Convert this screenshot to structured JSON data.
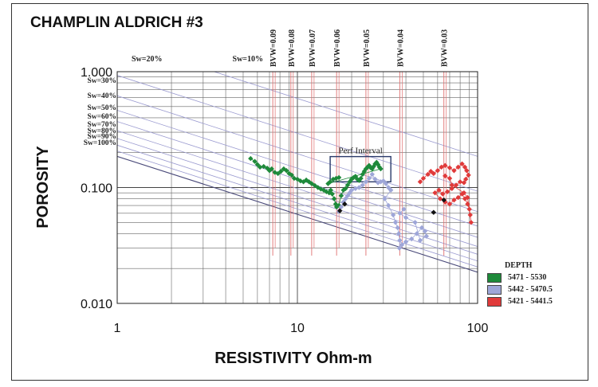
{
  "title": "CHAMPLIN ALDRICH #3",
  "chart_data": {
    "type": "scatter",
    "xscale": "log",
    "yscale": "log",
    "xlim": [
      1,
      100
    ],
    "ylim": [
      0.01,
      1.0
    ],
    "xlabel": "RESISTIVITY Ohm-m",
    "ylabel": "POROSITY",
    "x_ticks": [
      "1",
      "10",
      "100"
    ],
    "y_ticks": [
      "0.010",
      "0.100",
      "1.000"
    ],
    "grid": true,
    "sw_labels": [
      "Sw=20%",
      "Sw=10%",
      "Sw=30%",
      "Sw=40%",
      "Sw=50%",
      "Sw=60%",
      "Sw=70%",
      "Sw=80%",
      "Sw=90%",
      "Sw=100%"
    ],
    "bvw_labels": [
      "BVW=0.09",
      "BVW=0.08",
      "BVW=0.07",
      "BVW=0.06",
      "BVW=0.05",
      "BVW=0.04",
      "BVW=0.03"
    ],
    "bvw_x": [
      7.3,
      9.2,
      12.0,
      16.5,
      24.0,
      37.0,
      65.0
    ],
    "perf_interval": {
      "label": "Perf Interval",
      "x": [
        15.2,
        33.0
      ],
      "y": [
        0.112,
        0.185
      ]
    },
    "legend": {
      "title": "DEPTH",
      "position": "lower-right"
    },
    "series": [
      {
        "name": "5471 - 5530",
        "color": "#1e8a3a",
        "points": [
          [
            5.5,
            0.178
          ],
          [
            5.8,
            0.168
          ],
          [
            6.0,
            0.158
          ],
          [
            6.2,
            0.15
          ],
          [
            6.5,
            0.152
          ],
          [
            6.8,
            0.147
          ],
          [
            7.0,
            0.14
          ],
          [
            7.2,
            0.145
          ],
          [
            7.5,
            0.135
          ],
          [
            7.8,
            0.132
          ],
          [
            8.1,
            0.138
          ],
          [
            8.4,
            0.145
          ],
          [
            8.7,
            0.14
          ],
          [
            9.0,
            0.132
          ],
          [
            9.3,
            0.128
          ],
          [
            9.6,
            0.12
          ],
          [
            10.0,
            0.118
          ],
          [
            10.4,
            0.114
          ],
          [
            10.8,
            0.112
          ],
          [
            11.2,
            0.116
          ],
          [
            11.6,
            0.112
          ],
          [
            12.0,
            0.108
          ],
          [
            12.5,
            0.104
          ],
          [
            13.0,
            0.1
          ],
          [
            13.5,
            0.097
          ],
          [
            14.0,
            0.095
          ],
          [
            14.5,
            0.092
          ],
          [
            15.0,
            0.09
          ],
          [
            15.3,
            0.095
          ],
          [
            15.6,
            0.088
          ],
          [
            16.0,
            0.08
          ],
          [
            16.3,
            0.072
          ],
          [
            16.5,
            0.068
          ],
          [
            17.0,
            0.07
          ],
          [
            17.5,
            0.085
          ],
          [
            18.0,
            0.095
          ],
          [
            18.5,
            0.098
          ],
          [
            19.0,
            0.105
          ],
          [
            19.5,
            0.112
          ],
          [
            20.0,
            0.118
          ],
          [
            20.5,
            0.122
          ],
          [
            21.0,
            0.125
          ],
          [
            21.5,
            0.118
          ],
          [
            22.0,
            0.115
          ],
          [
            22.5,
            0.12
          ],
          [
            23.0,
            0.13
          ],
          [
            23.5,
            0.138
          ],
          [
            24.0,
            0.145
          ],
          [
            24.5,
            0.15
          ],
          [
            25.0,
            0.155
          ],
          [
            25.5,
            0.148
          ],
          [
            26.0,
            0.145
          ],
          [
            26.5,
            0.152
          ],
          [
            27.0,
            0.16
          ],
          [
            27.5,
            0.165
          ],
          [
            28.0,
            0.158
          ],
          [
            28.5,
            0.15
          ],
          [
            29.0,
            0.145
          ],
          [
            14.8,
            0.108
          ],
          [
            15.2,
            0.112
          ],
          [
            15.8,
            0.118
          ],
          [
            16.4,
            0.12
          ],
          [
            17.0,
            0.122
          ]
        ]
      },
      {
        "name": "5442 - 5470.5",
        "color": "#9ea6d8",
        "points": [
          [
            17.0,
            0.062
          ],
          [
            17.5,
            0.068
          ],
          [
            18.0,
            0.075
          ],
          [
            18.5,
            0.08
          ],
          [
            19.0,
            0.085
          ],
          [
            19.5,
            0.09
          ],
          [
            20.0,
            0.095
          ],
          [
            21.0,
            0.098
          ],
          [
            22.0,
            0.1
          ],
          [
            23.0,
            0.105
          ],
          [
            24.0,
            0.112
          ],
          [
            25.0,
            0.12
          ],
          [
            26.0,
            0.13
          ],
          [
            27.0,
            0.118
          ],
          [
            28.0,
            0.11
          ],
          [
            29.0,
            0.112
          ],
          [
            30.0,
            0.114
          ],
          [
            31.0,
            0.108
          ],
          [
            32.0,
            0.1
          ],
          [
            33.0,
            0.095
          ],
          [
            30.5,
            0.08
          ],
          [
            32.0,
            0.07
          ],
          [
            34.0,
            0.058
          ],
          [
            35.0,
            0.05
          ],
          [
            36.0,
            0.045
          ],
          [
            36.5,
            0.04
          ],
          [
            37.0,
            0.035
          ],
          [
            36.8,
            0.03
          ],
          [
            38.0,
            0.032
          ],
          [
            40.0,
            0.034
          ],
          [
            43.0,
            0.036
          ],
          [
            46.0,
            0.04
          ],
          [
            49.0,
            0.045
          ],
          [
            51.0,
            0.042
          ],
          [
            52.0,
            0.038
          ],
          [
            48.0,
            0.035
          ],
          [
            45.0,
            0.05
          ],
          [
            40.0,
            0.055
          ],
          [
            37.0,
            0.06
          ],
          [
            39.0,
            0.065
          ]
        ]
      },
      {
        "name": "5421 - 5441.5",
        "color": "#e03a3a",
        "points": [
          [
            48.0,
            0.112
          ],
          [
            50.0,
            0.12
          ],
          [
            53.0,
            0.13
          ],
          [
            55.0,
            0.138
          ],
          [
            57.0,
            0.132
          ],
          [
            60.0,
            0.14
          ],
          [
            63.0,
            0.15
          ],
          [
            66.0,
            0.155
          ],
          [
            70.0,
            0.148
          ],
          [
            74.0,
            0.14
          ],
          [
            78.0,
            0.15
          ],
          [
            82.0,
            0.16
          ],
          [
            85.0,
            0.15
          ],
          [
            87.0,
            0.14
          ],
          [
            89.0,
            0.128
          ],
          [
            86.0,
            0.118
          ],
          [
            84.0,
            0.11
          ],
          [
            80.0,
            0.112
          ],
          [
            76.0,
            0.105
          ],
          [
            72.0,
            0.098
          ],
          [
            68.0,
            0.092
          ],
          [
            64.0,
            0.088
          ],
          [
            61.0,
            0.095
          ],
          [
            58.0,
            0.09
          ],
          [
            62.0,
            0.08
          ],
          [
            66.0,
            0.075
          ],
          [
            70.0,
            0.072
          ],
          [
            74.0,
            0.078
          ],
          [
            78.0,
            0.082
          ],
          [
            82.0,
            0.088
          ],
          [
            85.0,
            0.08
          ],
          [
            88.0,
            0.072
          ],
          [
            90.0,
            0.065
          ],
          [
            91.0,
            0.058
          ],
          [
            92.0,
            0.05
          ],
          [
            88.0,
            0.082
          ],
          [
            84.0,
            0.09
          ],
          [
            72.0,
            0.105
          ],
          [
            70.0,
            0.12
          ],
          [
            66.0,
            0.126
          ]
        ]
      },
      {
        "name": "markers",
        "color": "#111111",
        "points": [
          [
            17.2,
            0.063
          ],
          [
            18.3,
            0.072
          ],
          [
            57.0,
            0.061
          ],
          [
            65.0,
            0.078
          ]
        ]
      }
    ]
  }
}
